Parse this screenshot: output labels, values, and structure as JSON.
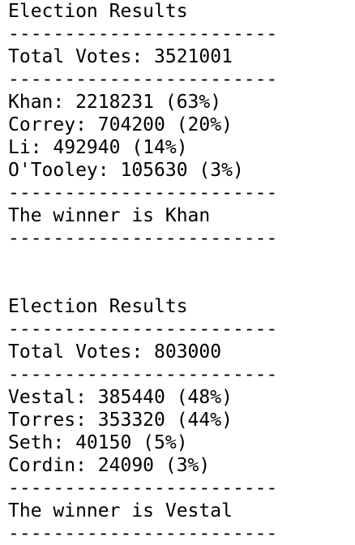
{
  "blocks": [
    {
      "lines": [
        "Election Results",
        "------------------------",
        "Total Votes: 3521001",
        "------------------------",
        "Khan: 2218231 (63%)",
        "Correy: 704200 (20%)",
        "Li: 492940 (14%)",
        "O'Tooley: 105630 (3%)",
        "------------------------",
        "The winner is Khan",
        "------------------------"
      ]
    },
    {
      "lines": [
        "Election Results",
        "------------------------",
        "Total Votes: 803000",
        "------------------------",
        "Vestal: 385440 (48%)",
        "Torres: 353320 (44%)",
        "Seth: 40150 (5%)",
        "Cordin: 24090 (3%)",
        "------------------------",
        "The winner is Vestal",
        "------------------------"
      ]
    }
  ]
}
